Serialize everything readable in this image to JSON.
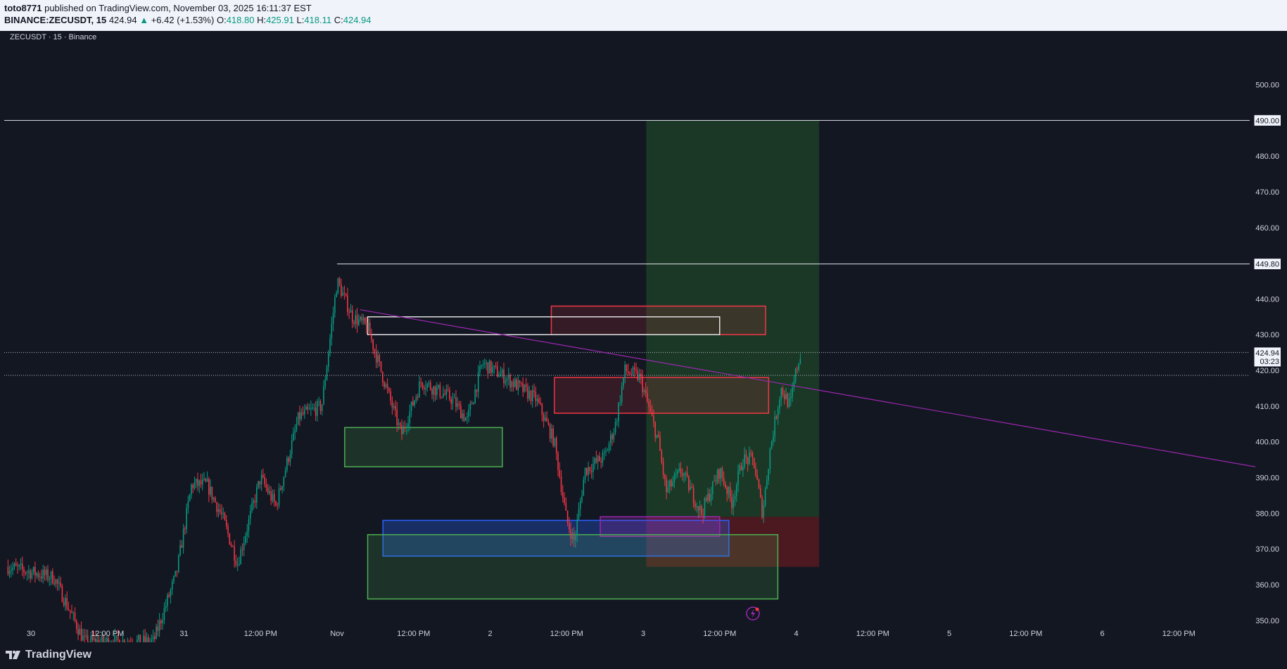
{
  "header": {
    "publisher": "toto8771",
    "published_text": "published on TradingView.com, November 03, 2025 16:11:37 EST",
    "symbol_line": "BINANCE:ZECUSDT, 15",
    "last_price": "424.94",
    "change_arrow": "▲",
    "change": "+6.42 (+1.53%)",
    "o_label": "O:",
    "o_value": "418.80",
    "h_label": "H:",
    "h_value": "425.91",
    "l_label": "L:",
    "l_value": "418.11",
    "c_label": "C:",
    "c_value": "424.94"
  },
  "legend": {
    "text": "ZECUSDT · 15 · Binance"
  },
  "price_labels": {
    "level_490": "490.00",
    "level_449": "449.80",
    "current_price": "424.94",
    "countdown": "03:23"
  },
  "footer": {
    "brand": "TradingView"
  },
  "colors": {
    "background": "#131722",
    "up": "#089981",
    "down": "#f23645",
    "axis_text": "#d1d4dc",
    "trendline": "#9c27b0",
    "zone_red": "#f23645",
    "zone_green": "#4caf50",
    "zone_blue": "#2962ff",
    "zone_purple": "#9c27b0",
    "position_profit": "#2e7d32",
    "position_loss": "#b71c1c"
  },
  "chart_data": {
    "type": "candlestick",
    "symbol": "ZECUSDT",
    "interval": "15",
    "exchange": "Binance",
    "ylim": [
      342,
      510
    ],
    "y_ticks": [
      350,
      360,
      370,
      380,
      390,
      400,
      410,
      420,
      430,
      440,
      450,
      460,
      470,
      480,
      490,
      500
    ],
    "y_tick_labels": [
      "350.00",
      "360.00",
      "370.00",
      "380.00",
      "390.00",
      "400.00",
      "410.00",
      "420.00",
      "430.00",
      "440.00",
      "450.00",
      "460.00",
      "470.00",
      "480.00",
      "490.00",
      "500.00"
    ],
    "x_tick_labels": [
      "30",
      "12:00 PM",
      "31",
      "12:00 PM",
      "Nov",
      "12:00 PM",
      "2",
      "12:00 PM",
      "3",
      "12:00 PM",
      "4",
      "12:00 PM",
      "5",
      "12:00 PM",
      "6",
      "12:00 PM"
    ],
    "x_ticks_days": [
      0,
      0.5,
      1,
      1.5,
      2,
      2.5,
      3,
      3.5,
      4,
      4.5,
      5,
      5.5,
      6,
      6.5,
      7,
      7.5
    ],
    "price_path": [
      [
        -0.15,
        365
      ],
      [
        0.15,
        362
      ],
      [
        0.35,
        344
      ],
      [
        0.8,
        344
      ],
      [
        0.95,
        363
      ],
      [
        1.05,
        388
      ],
      [
        1.15,
        388
      ],
      [
        1.25,
        379
      ],
      [
        1.35,
        366
      ],
      [
        1.5,
        390
      ],
      [
        1.6,
        382
      ],
      [
        1.75,
        407
      ],
      [
        1.9,
        410
      ],
      [
        2.0,
        445
      ],
      [
        2.1,
        435
      ],
      [
        2.2,
        432
      ],
      [
        2.3,
        418
      ],
      [
        2.42,
        402
      ],
      [
        2.55,
        417
      ],
      [
        2.75,
        412
      ],
      [
        2.85,
        406
      ],
      [
        2.95,
        422
      ],
      [
        3.1,
        418
      ],
      [
        3.3,
        412
      ],
      [
        3.42,
        400
      ],
      [
        3.5,
        378
      ],
      [
        3.55,
        372
      ],
      [
        3.62,
        392
      ],
      [
        3.75,
        396
      ],
      [
        3.82,
        405
      ],
      [
        3.88,
        420
      ],
      [
        3.98,
        418
      ],
      [
        4.1,
        400
      ],
      [
        4.15,
        386
      ],
      [
        4.25,
        392
      ],
      [
        4.38,
        380
      ],
      [
        4.5,
        392
      ],
      [
        4.58,
        383
      ],
      [
        4.65,
        395
      ],
      [
        4.72,
        395
      ],
      [
        4.78,
        380
      ],
      [
        4.83,
        398
      ],
      [
        4.9,
        415
      ],
      [
        4.96,
        410
      ],
      [
        5.0,
        420
      ],
      [
        5.03,
        424.94
      ]
    ],
    "current_price": 424.94,
    "horizontal_levels": [
      {
        "price": 490.0,
        "label": "490.00",
        "from_day": -0.2
      },
      {
        "price": 449.8,
        "label": "449.80",
        "from_day": 2.0
      }
    ],
    "dotted_levels": [
      425.0,
      418.6
    ],
    "trendline": {
      "from": [
        2.15,
        437
      ],
      "to": [
        8.0,
        393
      ]
    },
    "zones": [
      {
        "color": "red",
        "x": [
          3.4,
          4.8
        ],
        "y": [
          430,
          438
        ]
      },
      {
        "color": "white",
        "x": [
          2.2,
          4.5
        ],
        "y": [
          430,
          435
        ]
      },
      {
        "color": "red",
        "x": [
          3.42,
          4.82
        ],
        "y": [
          408,
          418
        ]
      },
      {
        "color": "green",
        "x": [
          2.05,
          3.08
        ],
        "y": [
          393,
          404
        ]
      },
      {
        "color": "blue",
        "x": [
          2.3,
          4.56
        ],
        "y": [
          368,
          378
        ]
      },
      {
        "color": "purple",
        "x": [
          3.72,
          4.5
        ],
        "y": [
          373.5,
          379
        ]
      },
      {
        "color": "green",
        "x": [
          2.2,
          4.88
        ],
        "y": [
          356,
          374
        ]
      }
    ],
    "long_position": {
      "x": [
        4.02,
        5.15
      ],
      "entry": 379,
      "target": 490,
      "stop": 365
    },
    "grid": false,
    "legend_position": "top-left"
  }
}
